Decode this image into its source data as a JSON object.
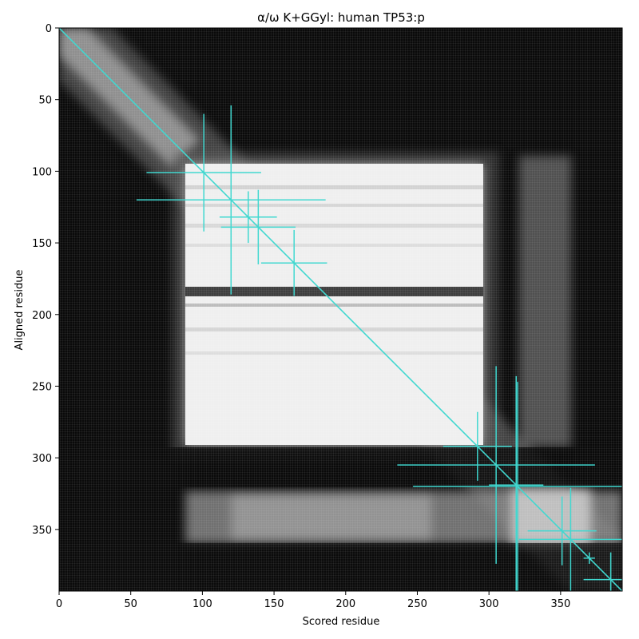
{
  "chart_data": {
    "type": "heatmap",
    "title": "α/ω K+GGyl: human TP53:p",
    "xlabel": "Scored residue",
    "ylabel": "Aligned residue",
    "xlim": [
      0,
      393
    ],
    "ylim": [
      393,
      0
    ],
    "x_ticks": [
      0,
      50,
      100,
      150,
      200,
      250,
      300,
      350
    ],
    "y_ticks": [
      0,
      50,
      100,
      150,
      200,
      250,
      300,
      350
    ],
    "grid": false,
    "colors": {
      "accent": "#40d8d0",
      "heat_dark": "#0a0a0a",
      "heat_light": "#f2f2f2"
    },
    "diagonal": {
      "from": [
        0,
        0
      ],
      "to": [
        393,
        393
      ]
    },
    "crosses": [
      {
        "x": 101,
        "y": 101,
        "xerr": 40,
        "yerr": 41
      },
      {
        "x": 120,
        "y": 120,
        "xerr": 66,
        "yerr": 66
      },
      {
        "x": 132,
        "y": 132,
        "xerr": 20,
        "yerr": 18
      },
      {
        "x": 139,
        "y": 139,
        "xerr": 26,
        "yerr": 26
      },
      {
        "x": 164,
        "y": 164,
        "xerr": 23,
        "yerr": 23
      },
      {
        "x": 292,
        "y": 292,
        "xerr": 24,
        "yerr": 24
      },
      {
        "x": 305,
        "y": 305,
        "xerr": 69,
        "yerr": 69
      },
      {
        "x": 319,
        "y": 319,
        "xerr": 19,
        "yerr": 76
      },
      {
        "x": 320,
        "y": 320,
        "xerr": 73,
        "yerr": 73
      },
      {
        "x": 351,
        "y": 351,
        "xerr": 24,
        "yerr": 24
      },
      {
        "x": 357,
        "y": 357,
        "xerr": 36,
        "yerr": 36
      },
      {
        "x": 370,
        "y": 370,
        "xerr": 4,
        "yerr": 4
      },
      {
        "x": 385,
        "y": 385,
        "xerr": 19,
        "yerr": 19
      }
    ]
  }
}
